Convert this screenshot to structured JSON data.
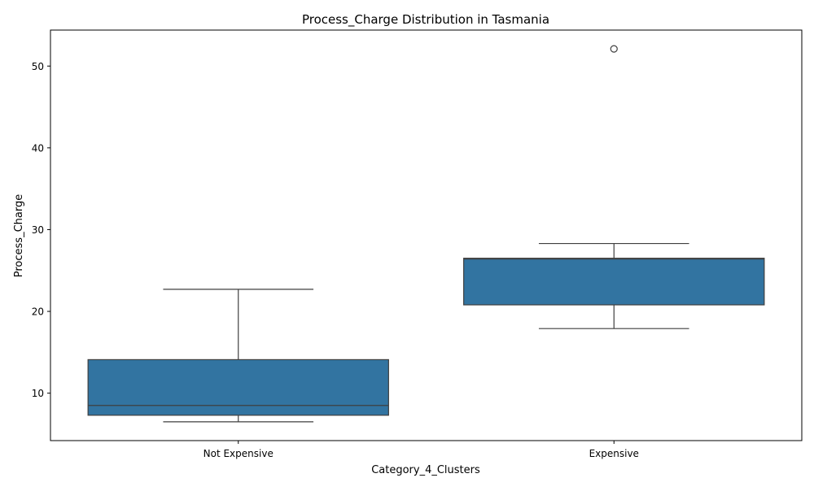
{
  "chart_data": {
    "type": "box",
    "title": "Process_Charge Distribution in Tasmania",
    "xlabel": "Category_4_Clusters",
    "ylabel": "Process_Charge",
    "categories": [
      "Not Expensive",
      "Expensive"
    ],
    "boxes": [
      {
        "category": "Not Expensive",
        "whisker_low": 6.5,
        "q1": 7.3,
        "median": 8.5,
        "q3": 14.1,
        "whisker_high": 22.7,
        "outliers": []
      },
      {
        "category": "Expensive",
        "whisker_low": 17.9,
        "q1": 20.8,
        "median": 26.4,
        "q3": 26.5,
        "whisker_high": 28.3,
        "outliers": [
          52.1
        ]
      }
    ],
    "yticks": [
      10,
      20,
      30,
      40,
      50
    ],
    "ylim": [
      4.2,
      54.4
    ],
    "grid": false,
    "legend": "none",
    "colors": {
      "box_fill": "#3274a1",
      "line": "#3f3f3f",
      "axis": "#000000"
    }
  }
}
